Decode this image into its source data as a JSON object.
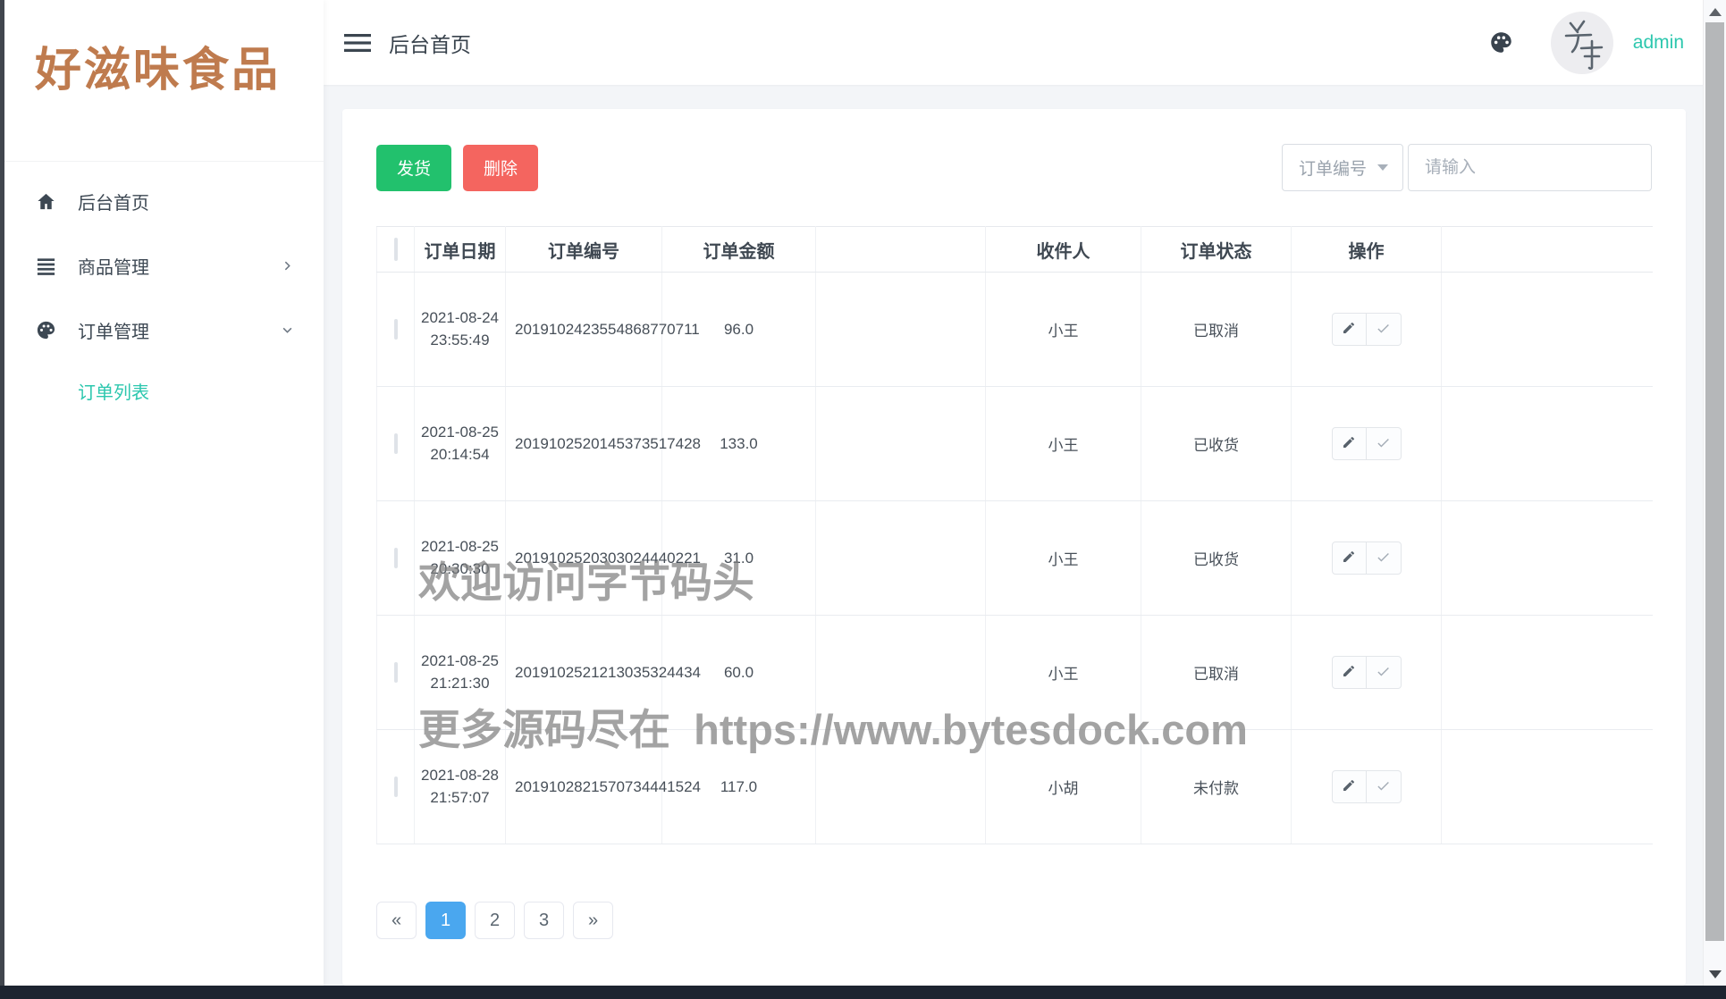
{
  "sidebar": {
    "logo": "好滋味食品",
    "menu": [
      {
        "name": "home",
        "label": "后台首页",
        "icon": "home-icon",
        "chevron": ""
      },
      {
        "name": "product-manage",
        "label": "商品管理",
        "icon": "list-icon",
        "chevron": "right"
      },
      {
        "name": "order-manage",
        "label": "订单管理",
        "icon": "palette-icon",
        "chevron": "down"
      }
    ],
    "submenu": [
      {
        "name": "order-list",
        "label": "订单列表",
        "active": true
      }
    ]
  },
  "topbar": {
    "page_title": "后台首页",
    "username": "admin"
  },
  "toolbar": {
    "ship_button": "发货",
    "delete_button": "删除",
    "filter_dropdown": "订单编号",
    "search_placeholder": "请输入"
  },
  "table": {
    "headers": [
      "订单日期",
      "订单编号",
      "订单金额",
      "收件人",
      "订单状态",
      "操作"
    ],
    "rows": [
      {
        "date": "2021-08-24 23:55:49",
        "order_no": "2019102423554868770711",
        "amount": "96.0",
        "recipient": "小王",
        "status": "已取消"
      },
      {
        "date": "2021-08-25 20:14:54",
        "order_no": "2019102520145373517428",
        "amount": "133.0",
        "recipient": "小王",
        "status": "已收货"
      },
      {
        "date": "2021-08-25 20:30:30",
        "order_no": "2019102520303024440221",
        "amount": "31.0",
        "recipient": "小王",
        "status": "已收货"
      },
      {
        "date": "2021-08-25 21:21:30",
        "order_no": "2019102521213035324434",
        "amount": "60.0",
        "recipient": "小王",
        "status": "已取消"
      },
      {
        "date": "2021-08-28 21:57:07",
        "order_no": "2019102821570734441524",
        "amount": "117.0",
        "recipient": "小胡",
        "status": "未付款"
      }
    ]
  },
  "pagination": {
    "first": "«",
    "pages": [
      "1",
      "2",
      "3"
    ],
    "last": "»",
    "active_page": "1"
  },
  "watermark": {
    "line1": "欢迎访问字节码头",
    "line2": "更多源码尽在  https://www.bytesdock.com"
  },
  "colors": {
    "accent_teal": "#2cc7ae",
    "green": "#22c16d",
    "red": "#f4655f",
    "active_page_blue": "#4aa7ef",
    "logo_brown": "#bf7b4e"
  }
}
